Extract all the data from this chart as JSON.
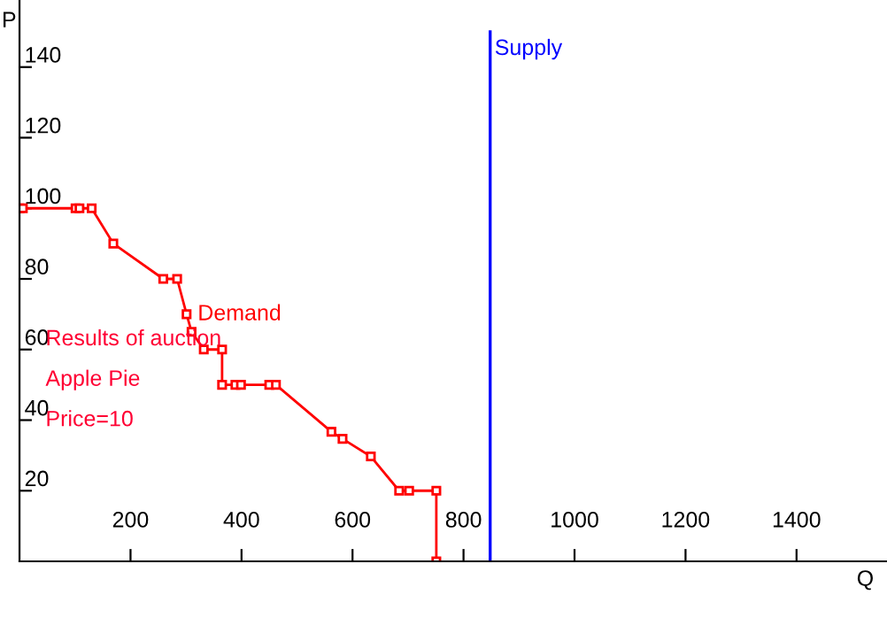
{
  "chart_data": {
    "type": "line",
    "xlabel": "Q",
    "ylabel": "P",
    "xlim": [
      0,
      1563
    ],
    "ylim": [
      0,
      159
    ],
    "xticks": [
      200,
      400,
      600,
      800,
      1000,
      1200,
      1400
    ],
    "yticks": [
      20,
      40,
      60,
      80,
      100,
      120,
      140
    ],
    "series": [
      {
        "name": "Demand",
        "color": "#ff0000",
        "marker": "square",
        "x": [
          0,
          6,
          101,
          108,
          130,
          169,
          259,
          284,
          301,
          310,
          332,
          365,
          365,
          389,
          399,
          450,
          462,
          562,
          582,
          633,
          684,
          702,
          751,
          751
        ],
        "values": [
          100,
          100,
          100,
          100,
          100,
          90,
          80,
          80,
          70,
          65,
          60,
          60,
          50,
          50,
          50,
          50,
          50,
          36.7,
          34.7,
          29.7,
          20,
          20,
          20,
          0
        ]
      },
      {
        "name": "Supply",
        "color": "#0000ff",
        "marker": "none",
        "x": [
          848,
          848
        ],
        "values": [
          0,
          150
        ]
      }
    ],
    "annotations": [
      "Results of auction",
      "Apple Pie",
      "Price=10"
    ]
  }
}
